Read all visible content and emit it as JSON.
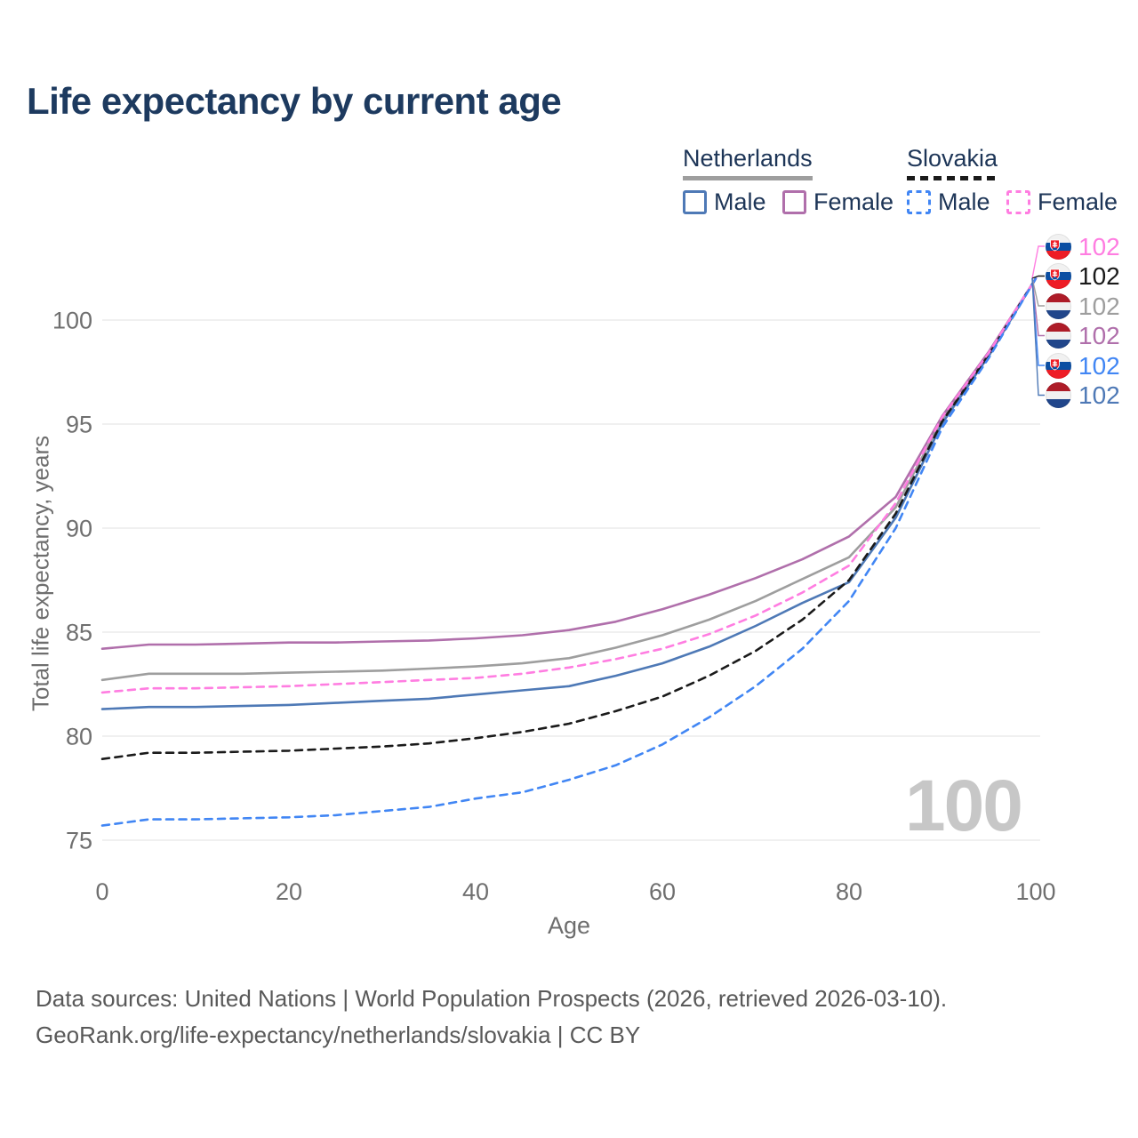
{
  "title": "Life expectancy by current age",
  "legend": {
    "groups": [
      {
        "label": "Netherlands",
        "line_style": "solid",
        "line_color": "#9e9e9e",
        "items": [
          {
            "label": "Male",
            "color": "#4e79b6",
            "style": "solid"
          },
          {
            "label": "Female",
            "color": "#b06fab",
            "style": "solid"
          }
        ]
      },
      {
        "label": "Slovakia",
        "line_style": "dashed",
        "line_color": "#1a1a1a",
        "items": [
          {
            "label": "Male",
            "color": "#4186f4",
            "style": "dashed"
          },
          {
            "label": "Female",
            "color": "#ff7de1",
            "style": "dashed"
          }
        ]
      }
    ]
  },
  "watermark": "100",
  "footer": {
    "line1": "Data sources: United Nations | World Population Prospects (2026, retrieved 2026-03-10).",
    "line2": "GeoRank.org/life-expectancy/netherlands/slovakia | CC BY"
  },
  "chart_data": {
    "type": "line",
    "title": "Life expectancy by current age",
    "xlabel": "Age",
    "ylabel": "Total life expectancy, years",
    "xlim": [
      0,
      100
    ],
    "ylim": [
      73.5,
      103.5
    ],
    "x_ticks": [
      0,
      20,
      40,
      60,
      80,
      100
    ],
    "y_ticks": [
      75,
      80,
      85,
      90,
      95,
      100
    ],
    "grid": "horizontal",
    "legend_position": "top-right",
    "x": [
      0,
      5,
      10,
      15,
      20,
      25,
      30,
      35,
      40,
      45,
      50,
      55,
      60,
      65,
      70,
      75,
      80,
      85,
      90,
      95,
      100
    ],
    "series": [
      {
        "id": "nl_both",
        "name": "Netherlands — Both sexes",
        "country": "Netherlands",
        "sex": "Both",
        "line": "solid",
        "color": "#9e9e9e",
        "end_label": "102",
        "values": [
          82.7,
          83.0,
          83.0,
          83.0,
          83.05,
          83.1,
          83.15,
          83.25,
          83.35,
          83.5,
          83.75,
          84.25,
          84.85,
          85.6,
          86.5,
          87.55,
          88.6,
          91.0,
          95.25,
          98.4,
          102
        ]
      },
      {
        "id": "nl_female",
        "name": "Netherlands — Female",
        "country": "Netherlands",
        "sex": "Female",
        "line": "solid",
        "color": "#b06fab",
        "end_label": "102",
        "values": [
          84.2,
          84.4,
          84.4,
          84.45,
          84.5,
          84.5,
          84.55,
          84.6,
          84.7,
          84.85,
          85.1,
          85.5,
          86.1,
          86.8,
          87.6,
          88.5,
          89.6,
          91.5,
          95.4,
          98.5,
          102
        ]
      },
      {
        "id": "nl_male",
        "name": "Netherlands — Male",
        "country": "Netherlands",
        "sex": "Male",
        "line": "solid",
        "color": "#4e79b6",
        "end_label": "102",
        "values": [
          81.3,
          81.4,
          81.4,
          81.45,
          81.5,
          81.6,
          81.7,
          81.8,
          82.0,
          82.2,
          82.4,
          82.9,
          83.5,
          84.3,
          85.3,
          86.4,
          87.4,
          90.5,
          95.05,
          98.3,
          102
        ]
      },
      {
        "id": "sk_both",
        "name": "Slovakia — Both sexes",
        "country": "Slovakia",
        "sex": "Both",
        "line": "dashed",
        "color": "#1a1a1a",
        "end_label": "102",
        "values": [
          78.9,
          79.2,
          79.2,
          79.25,
          79.3,
          79.4,
          79.5,
          79.65,
          79.9,
          80.2,
          80.6,
          81.2,
          81.9,
          82.9,
          84.1,
          85.6,
          87.5,
          90.7,
          95.15,
          98.35,
          102
        ]
      },
      {
        "id": "sk_female",
        "name": "Slovakia — Female",
        "country": "Slovakia",
        "sex": "Female",
        "line": "dashed",
        "color": "#ff7de1",
        "end_label": "102",
        "values": [
          82.1,
          82.3,
          82.3,
          82.35,
          82.4,
          82.5,
          82.6,
          82.7,
          82.8,
          83.0,
          83.3,
          83.7,
          84.2,
          84.9,
          85.8,
          86.9,
          88.2,
          91.2,
          95.35,
          98.45,
          102
        ]
      },
      {
        "id": "sk_male",
        "name": "Slovakia — Male",
        "country": "Slovakia",
        "sex": "Male",
        "line": "dashed",
        "color": "#4186f4",
        "end_label": "102",
        "values": [
          75.7,
          76.0,
          76.0,
          76.05,
          76.1,
          76.2,
          76.4,
          76.6,
          77.0,
          77.3,
          77.9,
          78.6,
          79.6,
          80.9,
          82.4,
          84.2,
          86.5,
          90.0,
          94.85,
          98.2,
          102
        ]
      }
    ],
    "end_labels_order": [
      "sk_female",
      "sk_both",
      "nl_both",
      "nl_female",
      "sk_male",
      "nl_male"
    ]
  }
}
